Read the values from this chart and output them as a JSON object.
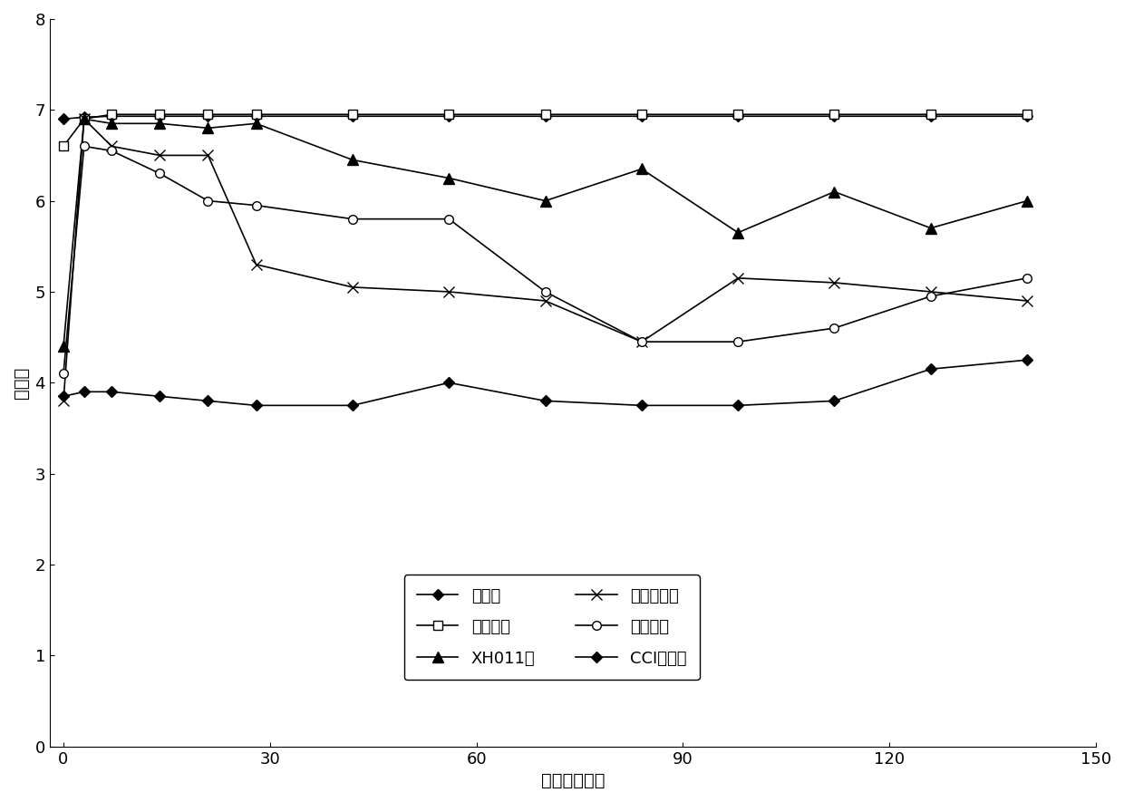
{
  "title": "",
  "xlabel": "时间（小时）",
  "ylabel": "痛阈值",
  "xlim": [
    -2,
    150
  ],
  "ylim": [
    0,
    8
  ],
  "xticks": [
    0,
    30,
    60,
    90,
    120,
    150
  ],
  "yticks": [
    0,
    1,
    2,
    3,
    4,
    5,
    6,
    7,
    8
  ],
  "series": [
    {
      "label": "空白组",
      "marker": "D",
      "markerfacecolor": "black",
      "markeredgecolor": "black",
      "markersize": 6,
      "linewidth": 1.2,
      "x": [
        0,
        3,
        7,
        14,
        21,
        28,
        42,
        56,
        70,
        84,
        98,
        112,
        126,
        140
      ],
      "y": [
        6.9,
        6.92,
        6.93,
        6.93,
        6.93,
        6.93,
        6.93,
        6.93,
        6.93,
        6.93,
        6.93,
        6.93,
        6.93,
        6.93
      ]
    },
    {
      "label": "假手术组",
      "marker": "s",
      "markerfacecolor": "white",
      "markeredgecolor": "black",
      "markersize": 7,
      "linewidth": 1.2,
      "x": [
        0,
        3,
        7,
        14,
        21,
        28,
        42,
        56,
        70,
        84,
        98,
        112,
        126,
        140
      ],
      "y": [
        6.6,
        6.9,
        6.95,
        6.95,
        6.95,
        6.95,
        6.95,
        6.95,
        6.95,
        6.95,
        6.95,
        6.95,
        6.95,
        6.95
      ]
    },
    {
      "label": "XH011组",
      "marker": "^",
      "markerfacecolor": "black",
      "markeredgecolor": "black",
      "markersize": 8,
      "linewidth": 1.2,
      "x": [
        0,
        3,
        7,
        14,
        21,
        28,
        42,
        56,
        70,
        84,
        98,
        112,
        126,
        140
      ],
      "y": [
        4.4,
        6.9,
        6.85,
        6.85,
        6.8,
        6.85,
        6.45,
        6.25,
        6.0,
        6.35,
        5.65,
        6.1,
        5.7,
        6.0
      ]
    },
    {
      "label": "加巴喷丁组",
      "marker": "x",
      "markerfacecolor": "black",
      "markeredgecolor": "black",
      "markersize": 9,
      "linewidth": 1.2,
      "x": [
        0,
        3,
        7,
        14,
        21,
        28,
        42,
        56,
        70,
        84,
        98,
        112,
        126,
        140
      ],
      "y": [
        3.8,
        6.9,
        6.6,
        6.5,
        6.5,
        5.3,
        5.05,
        5.0,
        4.9,
        4.45,
        5.15,
        5.1,
        5.0,
        4.9
      ]
    },
    {
      "label": "天麻素组",
      "marker": "o",
      "markerfacecolor": "white",
      "markeredgecolor": "black",
      "markersize": 7,
      "linewidth": 1.2,
      "x": [
        0,
        3,
        7,
        14,
        21,
        28,
        42,
        56,
        70,
        84,
        98,
        112,
        126,
        140
      ],
      "y": [
        4.1,
        6.6,
        6.55,
        6.3,
        6.0,
        5.95,
        5.8,
        5.8,
        5.0,
        4.45,
        4.45,
        4.6,
        4.95,
        5.15
      ]
    },
    {
      "label": "CCI对照组",
      "marker": "D",
      "markerfacecolor": "black",
      "markeredgecolor": "black",
      "markersize": 6,
      "linewidth": 1.2,
      "x": [
        0,
        3,
        7,
        14,
        21,
        28,
        42,
        56,
        70,
        84,
        98,
        112,
        126,
        140
      ],
      "y": [
        3.85,
        3.9,
        3.9,
        3.85,
        3.8,
        3.75,
        3.75,
        4.0,
        3.8,
        3.75,
        3.75,
        3.8,
        4.15,
        4.25
      ]
    }
  ],
  "background_color": "#ffffff",
  "fontsize_label": 14,
  "fontsize_tick": 13,
  "fontsize_legend": 13
}
